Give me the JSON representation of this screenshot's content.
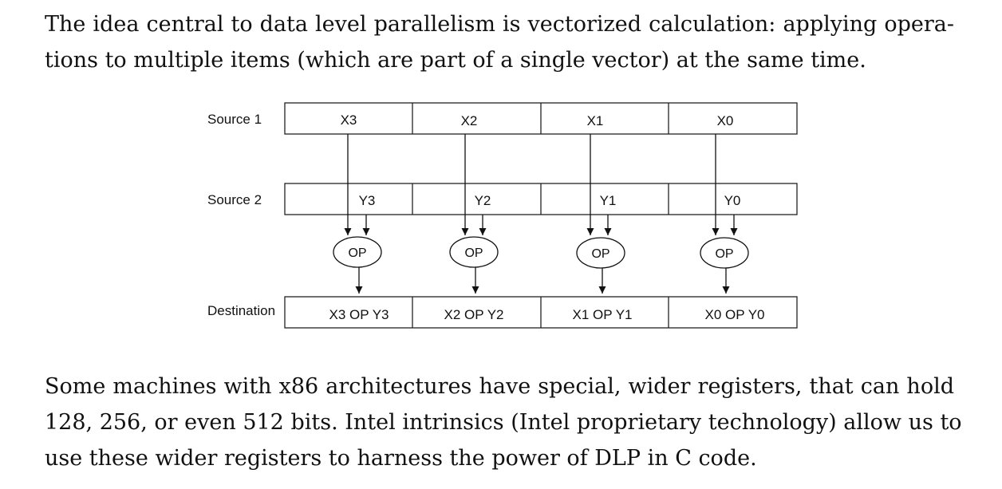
{
  "paragraph_1": {
    "lines": [
      "The idea central to data level parallelism is vectorized calculation: applying opera-",
      "tions to multiple items (which are part of a single vector) at the same time."
    ]
  },
  "diagram": {
    "rows": [
      {
        "label": "Source 1",
        "cells": [
          "X3",
          "X2",
          "X1",
          "X0"
        ]
      },
      {
        "label": "Source 2",
        "cells": [
          "Y3",
          "Y2",
          "Y1",
          "Y0"
        ]
      },
      {
        "label": "Destination",
        "cells": [
          "X3 OP Y3",
          "X2 OP Y2",
          "X1 OP Y1",
          "X0 OP Y0"
        ]
      }
    ],
    "op_label": "OP"
  },
  "paragraph_2": {
    "lines": [
      "Some machines with x86 architectures have special, wider registers, that can hold",
      "128, 256, or even 512 bits. Intel intrinsics (Intel proprietary technology) allow us to",
      "use these wider registers to harness the power of DLP in C code."
    ]
  }
}
